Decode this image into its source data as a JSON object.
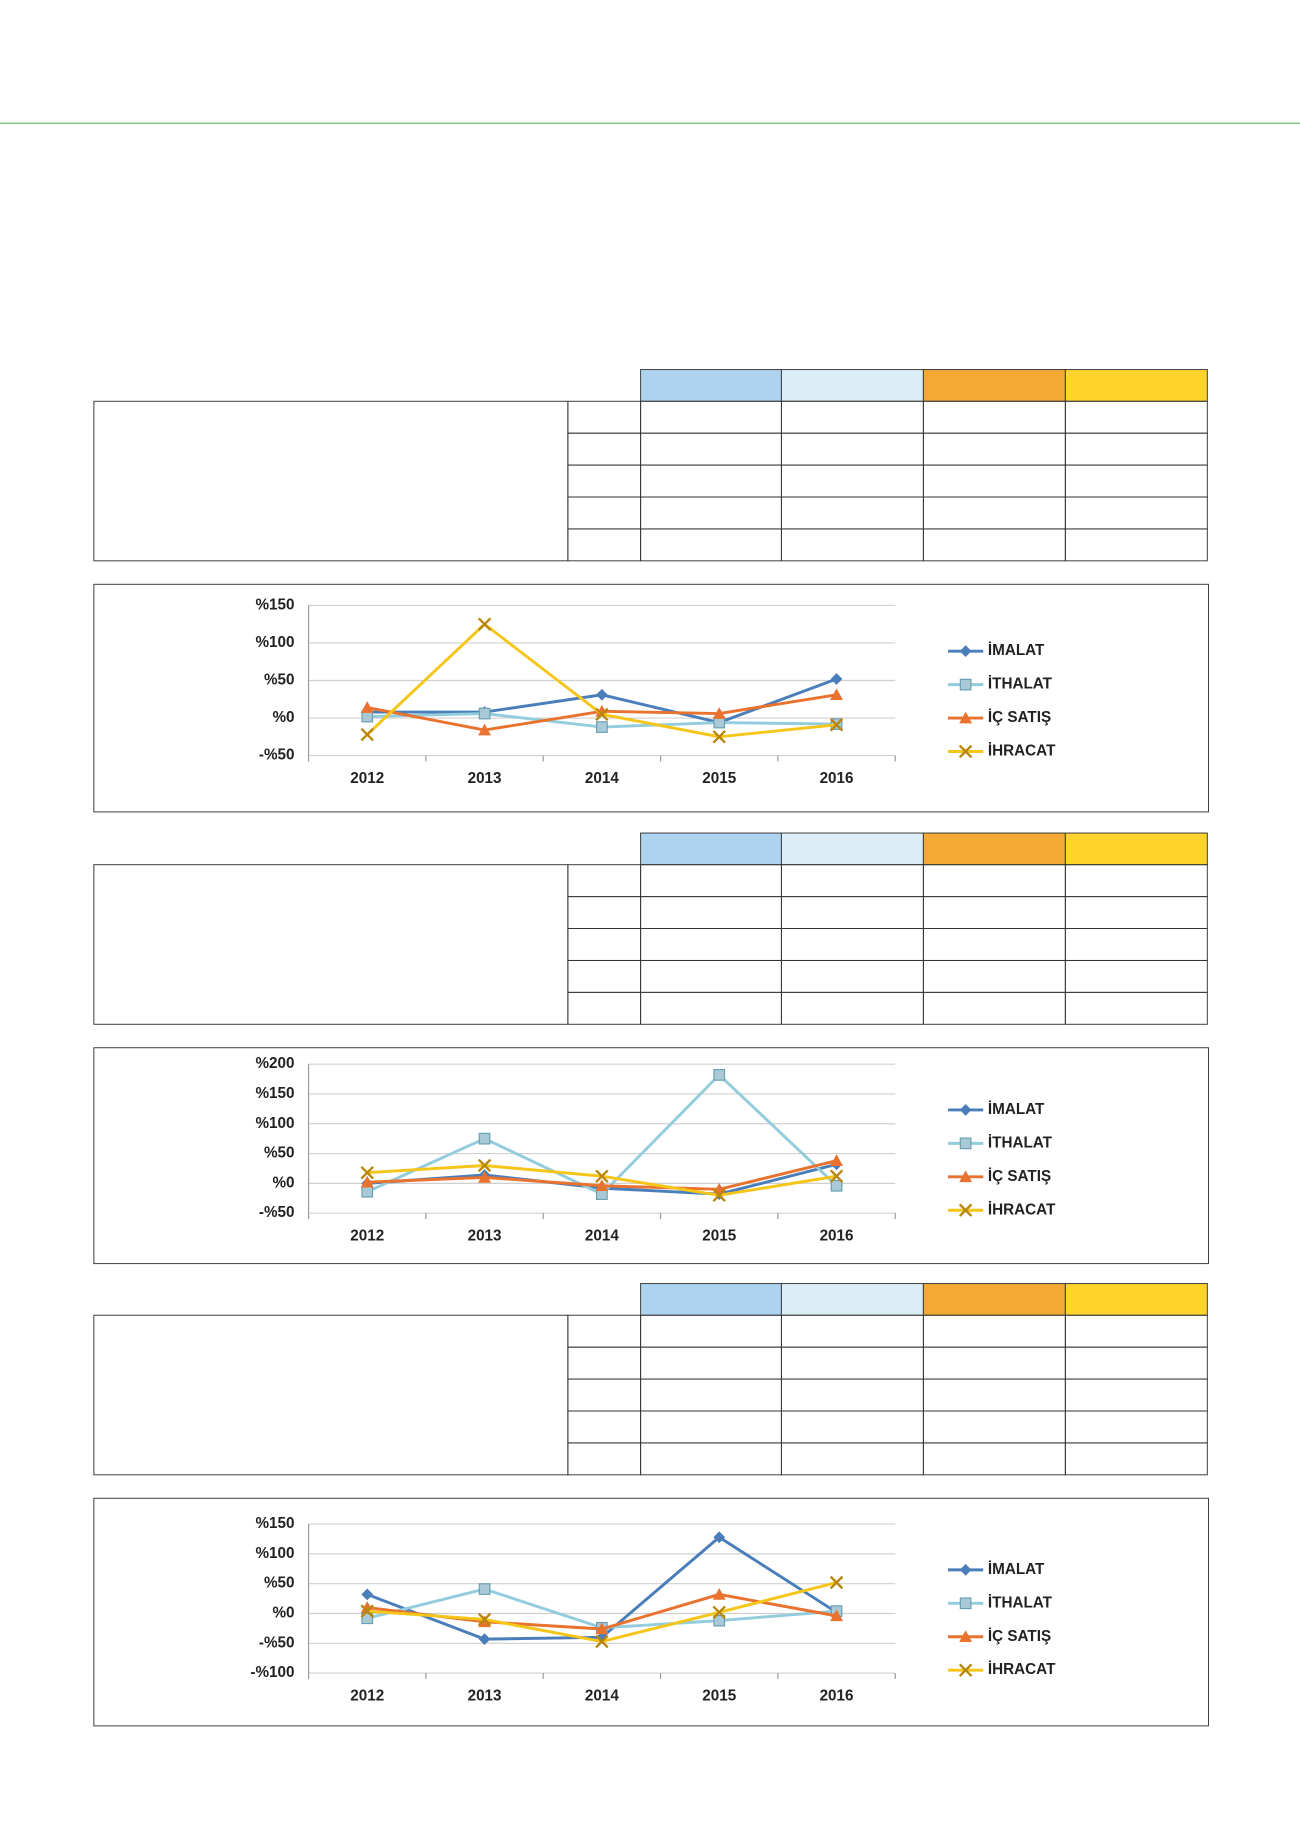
{
  "chart_data": [
    {
      "type": "line",
      "categories": [
        "2012",
        "2013",
        "2014",
        "2015",
        "2016"
      ],
      "ylim": [
        -50,
        150
      ],
      "yticks": [
        {
          "value": -50,
          "label": "-%50"
        },
        {
          "value": 0,
          "label": "%0"
        },
        {
          "value": 50,
          "label": "%50"
        },
        {
          "value": 100,
          "label": "%100"
        },
        {
          "value": 150,
          "label": "%150"
        }
      ],
      "grid": true,
      "legend": "right",
      "series": [
        {
          "name": "İMALAT",
          "color": "#4a7ebb",
          "marker": "diamond",
          "values": [
            8,
            8,
            31,
            -6,
            52
          ]
        },
        {
          "name": "İTHALAT",
          "color": "#93cddd",
          "marker": "square",
          "values": [
            2,
            6,
            -12,
            -6,
            -8
          ]
        },
        {
          "name": "İÇ SATIŞ",
          "color": "#e8722e",
          "marker": "triangle",
          "values": [
            14,
            -16,
            9,
            6,
            31
          ]
        },
        {
          "name": "İHRACAT",
          "color": "#f5c518",
          "marker": "x",
          "values": [
            -22,
            125,
            5,
            -25,
            -9
          ]
        }
      ]
    },
    {
      "type": "line",
      "categories": [
        "2012",
        "2013",
        "2014",
        "2015",
        "2016"
      ],
      "ylim": [
        -50,
        200
      ],
      "yticks": [
        {
          "value": -50,
          "label": "-%50"
        },
        {
          "value": 0,
          "label": "%0"
        },
        {
          "value": 50,
          "label": "%50"
        },
        {
          "value": 100,
          "label": "%100"
        },
        {
          "value": 150,
          "label": "%150"
        },
        {
          "value": 200,
          "label": "%200"
        }
      ],
      "grid": true,
      "legend": "right",
      "series": [
        {
          "name": "İMALAT",
          "color": "#4a7ebb",
          "marker": "diamond",
          "values": [
            0,
            14,
            -8,
            -18,
            32
          ]
        },
        {
          "name": "İTHALAT",
          "color": "#93cddd",
          "marker": "square",
          "values": [
            -14,
            75,
            -18,
            182,
            -4
          ]
        },
        {
          "name": "İÇ SATIŞ",
          "color": "#e8722e",
          "marker": "triangle",
          "values": [
            2,
            10,
            -4,
            -10,
            38
          ]
        },
        {
          "name": "İHRACAT",
          "color": "#f5c518",
          "marker": "x",
          "values": [
            18,
            30,
            12,
            -20,
            12
          ]
        }
      ]
    },
    {
      "type": "line",
      "categories": [
        "2012",
        "2013",
        "2014",
        "2015",
        "2016"
      ],
      "ylim": [
        -100,
        150
      ],
      "yticks": [
        {
          "value": -100,
          "label": "-%100"
        },
        {
          "value": -50,
          "label": "-%50"
        },
        {
          "value": 0,
          "label": "%0"
        },
        {
          "value": 50,
          "label": "%50"
        },
        {
          "value": 100,
          "label": "%100"
        },
        {
          "value": 150,
          "label": "%150"
        }
      ],
      "grid": true,
      "legend": "right",
      "series": [
        {
          "name": "İMALAT",
          "color": "#4a7ebb",
          "marker": "diamond",
          "values": [
            32,
            -43,
            -40,
            128,
            2
          ]
        },
        {
          "name": "İTHALAT",
          "color": "#93cddd",
          "marker": "square",
          "values": [
            -8,
            41,
            -24,
            -12,
            4
          ]
        },
        {
          "name": "İÇ SATIŞ",
          "color": "#e8722e",
          "marker": "triangle",
          "values": [
            10,
            -14,
            -26,
            32,
            -4
          ]
        },
        {
          "name": "İHRACAT",
          "color": "#f5c518",
          "marker": "x",
          "values": [
            4,
            -10,
            -47,
            2,
            52
          ]
        }
      ]
    }
  ]
}
